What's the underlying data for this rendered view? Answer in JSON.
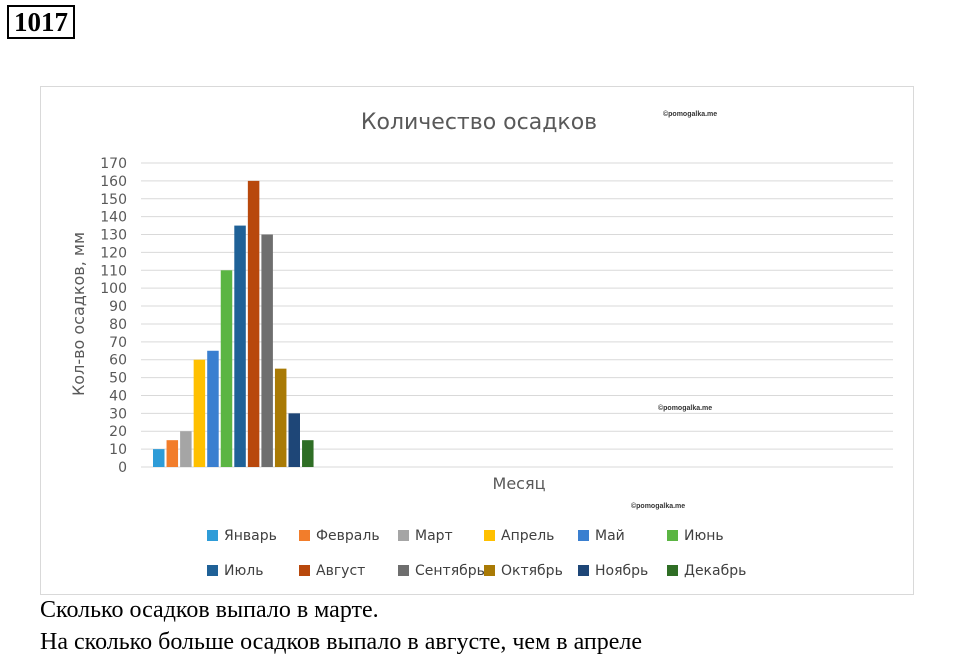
{
  "task_number": "1017",
  "watermarks": [
    "©pomogalka.me",
    "©pomogalka.me",
    "©pomogalka.me"
  ],
  "questions": [
    "Сколько осадков выпало в марте.",
    "На сколько больше осадков выпало в августе, чем в апреле"
  ],
  "chart_data": {
    "type": "bar",
    "title": "Количество осадков",
    "xlabel": "Месяц",
    "ylabel": "Кол-во осадков, мм",
    "ylim": [
      0,
      170
    ],
    "ytick_step": 10,
    "grid": true,
    "legend_position": "bottom",
    "categories": [
      ""
    ],
    "series": [
      {
        "name": "Январь",
        "values": [
          10
        ],
        "color": "#2e9cd8"
      },
      {
        "name": "Февраль",
        "values": [
          15
        ],
        "color": "#f27d2b"
      },
      {
        "name": "Март",
        "values": [
          20
        ],
        "color": "#a5a5a5"
      },
      {
        "name": "Апрель",
        "values": [
          60
        ],
        "color": "#ffc000"
      },
      {
        "name": "Май",
        "values": [
          65
        ],
        "color": "#3a7fd0"
      },
      {
        "name": "Июнь",
        "values": [
          110
        ],
        "color": "#5bb543"
      },
      {
        "name": "Июль",
        "values": [
          135
        ],
        "color": "#1f6197"
      },
      {
        "name": "Август",
        "values": [
          160
        ],
        "color": "#b8480c"
      },
      {
        "name": "Сентябрь",
        "values": [
          130
        ],
        "color": "#6e6e6e"
      },
      {
        "name": "Октябрь",
        "values": [
          55
        ],
        "color": "#a97a05"
      },
      {
        "name": "Ноябрь",
        "values": [
          30
        ],
        "color": "#1e4677"
      },
      {
        "name": "Декабрь",
        "values": [
          15
        ],
        "color": "#2f6e25"
      }
    ]
  }
}
